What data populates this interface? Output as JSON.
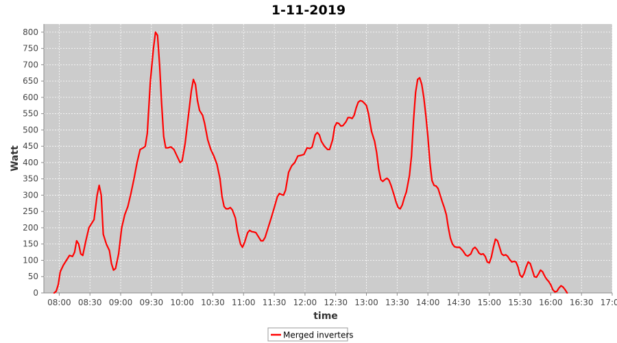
{
  "chart_data": {
    "type": "line",
    "title": "1-11-2019",
    "xlabel": "time",
    "ylabel": "Watt",
    "xlim": [
      "07:45",
      "17:00"
    ],
    "ylim": [
      0,
      825
    ],
    "x_ticks": [
      "08:00",
      "08:30",
      "09:00",
      "09:30",
      "10:00",
      "10:30",
      "11:00",
      "11:30",
      "12:00",
      "12:30",
      "13:00",
      "13:30",
      "14:00",
      "14:30",
      "15:00",
      "15:30",
      "16:00",
      "16:30",
      "17:00"
    ],
    "y_ticks": [
      0,
      50,
      100,
      150,
      200,
      250,
      300,
      350,
      400,
      450,
      500,
      550,
      600,
      650,
      700,
      750,
      800
    ],
    "grid": true,
    "plot_background": "#cccccc",
    "legend_position": "bottom-center",
    "series": [
      {
        "name": "Merged inverters",
        "color": "#ff0000",
        "points": [
          [
            "07:55",
            0
          ],
          [
            "07:57",
            5
          ],
          [
            "07:59",
            25
          ],
          [
            "08:01",
            65
          ],
          [
            "08:04",
            85
          ],
          [
            "08:07",
            100
          ],
          [
            "08:10",
            115
          ],
          [
            "08:13",
            112
          ],
          [
            "08:15",
            125
          ],
          [
            "08:17",
            160
          ],
          [
            "08:19",
            150
          ],
          [
            "08:21",
            120
          ],
          [
            "08:23",
            115
          ],
          [
            "08:26",
            160
          ],
          [
            "08:29",
            200
          ],
          [
            "08:31",
            210
          ],
          [
            "08:34",
            225
          ],
          [
            "08:37",
            300
          ],
          [
            "08:39",
            330
          ],
          [
            "08:41",
            300
          ],
          [
            "08:43",
            180
          ],
          [
            "08:46",
            150
          ],
          [
            "08:49",
            130
          ],
          [
            "08:51",
            90
          ],
          [
            "08:53",
            70
          ],
          [
            "08:55",
            75
          ],
          [
            "08:58",
            120
          ],
          [
            "09:01",
            200
          ],
          [
            "09:04",
            240
          ],
          [
            "09:07",
            265
          ],
          [
            "09:10",
            305
          ],
          [
            "09:13",
            350
          ],
          [
            "09:16",
            400
          ],
          [
            "09:19",
            440
          ],
          [
            "09:22",
            445
          ],
          [
            "09:24",
            450
          ],
          [
            "09:26",
            490
          ],
          [
            "09:29",
            650
          ],
          [
            "09:32",
            750
          ],
          [
            "09:34",
            800
          ],
          [
            "09:36",
            790
          ],
          [
            "09:38",
            700
          ],
          [
            "09:40",
            580
          ],
          [
            "09:42",
            480
          ],
          [
            "09:44",
            445
          ],
          [
            "09:46",
            445
          ],
          [
            "09:49",
            448
          ],
          [
            "09:52",
            440
          ],
          [
            "09:55",
            420
          ],
          [
            "09:58",
            400
          ],
          [
            "10:00",
            405
          ],
          [
            "10:03",
            460
          ],
          [
            "10:06",
            540
          ],
          [
            "10:09",
            620
          ],
          [
            "10:11",
            655
          ],
          [
            "10:13",
            640
          ],
          [
            "10:15",
            590
          ],
          [
            "10:17",
            560
          ],
          [
            "10:20",
            545
          ],
          [
            "10:22",
            520
          ],
          [
            "10:25",
            470
          ],
          [
            "10:28",
            440
          ],
          [
            "10:31",
            420
          ],
          [
            "10:34",
            395
          ],
          [
            "10:37",
            350
          ],
          [
            "10:39",
            295
          ],
          [
            "10:41",
            265
          ],
          [
            "10:43",
            258
          ],
          [
            "10:45",
            258
          ],
          [
            "10:47",
            262
          ],
          [
            "10:49",
            255
          ],
          [
            "10:52",
            230
          ],
          [
            "10:54",
            190
          ],
          [
            "10:57",
            150
          ],
          [
            "10:59",
            140
          ],
          [
            "11:01",
            155
          ],
          [
            "11:04",
            185
          ],
          [
            "11:06",
            192
          ],
          [
            "11:08",
            188
          ],
          [
            "11:10",
            187
          ],
          [
            "11:12",
            185
          ],
          [
            "11:15",
            170
          ],
          [
            "11:17",
            160
          ],
          [
            "11:19",
            160
          ],
          [
            "11:21",
            170
          ],
          [
            "11:24",
            200
          ],
          [
            "11:27",
            230
          ],
          [
            "11:30",
            262
          ],
          [
            "11:33",
            295
          ],
          [
            "11:35",
            305
          ],
          [
            "11:37",
            302
          ],
          [
            "11:39",
            300
          ],
          [
            "11:41",
            315
          ],
          [
            "11:44",
            370
          ],
          [
            "11:47",
            390
          ],
          [
            "11:50",
            400
          ],
          [
            "11:53",
            420
          ],
          [
            "11:56",
            422
          ],
          [
            "11:59",
            425
          ],
          [
            "12:02",
            445
          ],
          [
            "12:05",
            443
          ],
          [
            "12:07",
            448
          ],
          [
            "12:10",
            485
          ],
          [
            "12:12",
            492
          ],
          [
            "12:14",
            485
          ],
          [
            "12:16",
            465
          ],
          [
            "12:19",
            450
          ],
          [
            "12:22",
            440
          ],
          [
            "12:24",
            440
          ],
          [
            "12:27",
            470
          ],
          [
            "12:29",
            510
          ],
          [
            "12:31",
            522
          ],
          [
            "12:33",
            520
          ],
          [
            "12:35",
            512
          ],
          [
            "12:37",
            513
          ],
          [
            "12:40",
            525
          ],
          [
            "12:42",
            538
          ],
          [
            "12:44",
            538
          ],
          [
            "12:46",
            535
          ],
          [
            "12:48",
            545
          ],
          [
            "12:50",
            568
          ],
          [
            "12:52",
            585
          ],
          [
            "12:54",
            590
          ],
          [
            "12:56",
            588
          ],
          [
            "12:58",
            582
          ],
          [
            "13:00",
            575
          ],
          [
            "13:02",
            550
          ],
          [
            "13:05",
            495
          ],
          [
            "13:08",
            465
          ],
          [
            "13:10",
            430
          ],
          [
            "13:12",
            380
          ],
          [
            "13:14",
            348
          ],
          [
            "13:16",
            342
          ],
          [
            "13:18",
            348
          ],
          [
            "13:20",
            352
          ],
          [
            "13:22",
            346
          ],
          [
            "13:24",
            330
          ],
          [
            "13:27",
            300
          ],
          [
            "13:29",
            278
          ],
          [
            "13:31",
            262
          ],
          [
            "13:33",
            258
          ],
          [
            "13:35",
            270
          ],
          [
            "13:37",
            292
          ],
          [
            "13:39",
            310
          ],
          [
            "13:42",
            360
          ],
          [
            "13:44",
            420
          ],
          [
            "13:46",
            530
          ],
          [
            "13:48",
            615
          ],
          [
            "13:50",
            655
          ],
          [
            "13:52",
            660
          ],
          [
            "13:54",
            640
          ],
          [
            "13:56",
            600
          ],
          [
            "13:58",
            545
          ],
          [
            "14:00",
            480
          ],
          [
            "14:02",
            400
          ],
          [
            "14:04",
            345
          ],
          [
            "14:06",
            330
          ],
          [
            "14:08",
            328
          ],
          [
            "14:10",
            320
          ],
          [
            "14:12",
            300
          ],
          [
            "14:14",
            280
          ],
          [
            "14:16",
            262
          ],
          [
            "14:18",
            240
          ],
          [
            "14:20",
            200
          ],
          [
            "14:22",
            168
          ],
          [
            "14:24",
            150
          ],
          [
            "14:26",
            142
          ],
          [
            "14:28",
            140
          ],
          [
            "14:31",
            140
          ],
          [
            "14:34",
            130
          ],
          [
            "14:37",
            116
          ],
          [
            "14:39",
            113
          ],
          [
            "14:42",
            120
          ],
          [
            "14:44",
            135
          ],
          [
            "14:46",
            140
          ],
          [
            "14:48",
            133
          ],
          [
            "14:50",
            122
          ],
          [
            "14:52",
            118
          ],
          [
            "14:54",
            120
          ],
          [
            "14:56",
            112
          ],
          [
            "14:58",
            95
          ],
          [
            "15:00",
            92
          ],
          [
            "15:02",
            110
          ],
          [
            "15:04",
            140
          ],
          [
            "15:06",
            165
          ],
          [
            "15:08",
            160
          ],
          [
            "15:10",
            140
          ],
          [
            "15:12",
            120
          ],
          [
            "15:14",
            115
          ],
          [
            "15:16",
            117
          ],
          [
            "15:18",
            112
          ],
          [
            "15:20",
            102
          ],
          [
            "15:22",
            95
          ],
          [
            "15:24",
            97
          ],
          [
            "15:26",
            95
          ],
          [
            "15:28",
            80
          ],
          [
            "15:30",
            55
          ],
          [
            "15:32",
            48
          ],
          [
            "15:34",
            60
          ],
          [
            "15:36",
            80
          ],
          [
            "15:38",
            95
          ],
          [
            "15:40",
            90
          ],
          [
            "15:42",
            70
          ],
          [
            "15:44",
            50
          ],
          [
            "15:46",
            48
          ],
          [
            "15:48",
            58
          ],
          [
            "15:50",
            70
          ],
          [
            "15:52",
            65
          ],
          [
            "15:54",
            52
          ],
          [
            "15:56",
            42
          ],
          [
            "15:58",
            35
          ],
          [
            "16:00",
            25
          ],
          [
            "16:02",
            10
          ],
          [
            "16:04",
            3
          ],
          [
            "16:06",
            5
          ],
          [
            "16:08",
            15
          ],
          [
            "16:10",
            22
          ],
          [
            "16:12",
            18
          ],
          [
            "16:14",
            10
          ],
          [
            "16:16",
            0
          ]
        ]
      }
    ]
  }
}
